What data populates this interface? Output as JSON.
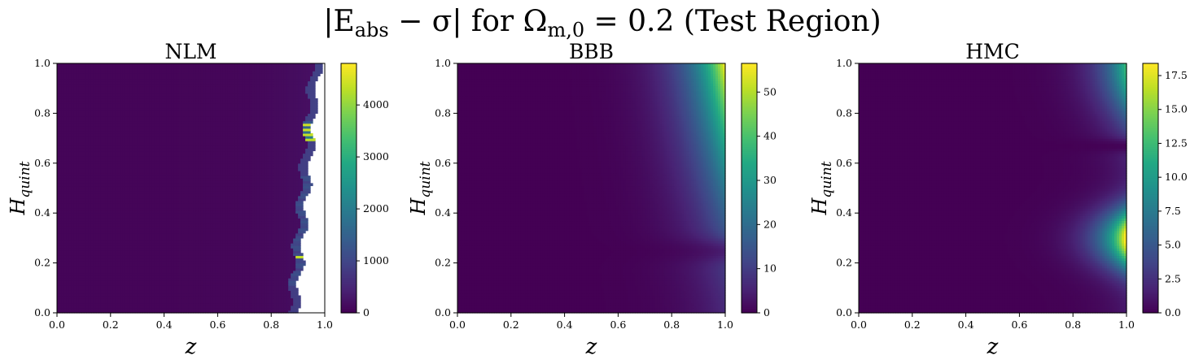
{
  "figure": {
    "title_main": "|E",
    "title_sub": "abs",
    "title_mid": " − σ| for Ω",
    "title_sub2": "m,0",
    "title_rest": " = 0.2 (Test Region)"
  },
  "chart_data": [
    {
      "type": "heatmap",
      "title": "NLM",
      "xlabel": "z",
      "ylabel_main": "H",
      "ylabel_sub": "quint",
      "xlim": [
        0,
        1
      ],
      "ylim": [
        0,
        1
      ],
      "xticks": [
        "0.0",
        "0.2",
        "0.4",
        "0.6",
        "0.8",
        "1.0"
      ],
      "yticks": [
        "0.0",
        "0.2",
        "0.4",
        "0.6",
        "0.8",
        "1.0"
      ],
      "colorbar": {
        "min": 0,
        "max": 4800,
        "ticks": [
          0,
          1000,
          2000,
          3000,
          4000
        ],
        "tick_labels": [
          "0",
          "1000",
          "2000",
          "3000",
          "4000"
        ]
      },
      "colormap": "viridis",
      "notes": "Near-zero everywhere; valid region ends at z≈0.90 (H=0) rising to z≈0.98 (H=1), white (missing) beyond; sporadic high values (up to ~4800) at the edge near H≈0.7–0.77 and H≈0.22."
    },
    {
      "type": "heatmap",
      "title": "BBB",
      "xlabel": "z",
      "ylabel_main": "H",
      "ylabel_sub": "quint",
      "xlim": [
        0,
        1
      ],
      "ylim": [
        0,
        1
      ],
      "xticks": [
        "0.0",
        "0.2",
        "0.4",
        "0.6",
        "0.8",
        "1.0"
      ],
      "yticks": [
        "0.0",
        "0.2",
        "0.4",
        "0.6",
        "0.8",
        "1.0"
      ],
      "colorbar": {
        "min": 0,
        "max": 56.5,
        "ticks": [
          0,
          10,
          20,
          30,
          40,
          50
        ],
        "tick_labels": [
          "0",
          "10",
          "20",
          "30",
          "40",
          "50"
        ]
      },
      "colormap": "viridis",
      "notes": "Error grows with z and H; maximum ~56 at z=1, H=1; dark dip near H≈0.25."
    },
    {
      "type": "heatmap",
      "title": "HMC",
      "xlabel": "z",
      "ylabel_main": "H",
      "ylabel_sub": "quint",
      "xlim": [
        0,
        1
      ],
      "ylim": [
        0,
        1
      ],
      "xticks": [
        "0.0",
        "0.2",
        "0.4",
        "0.6",
        "0.8",
        "1.0"
      ],
      "yticks": [
        "0.0",
        "0.2",
        "0.4",
        "0.6",
        "0.8",
        "1.0"
      ],
      "colorbar": {
        "min": 0,
        "max": 18.4,
        "ticks": [
          0,
          2.5,
          5,
          7.5,
          10,
          12.5,
          15,
          17.5
        ],
        "tick_labels": [
          "0.0",
          "2.5",
          "5.0",
          "7.5",
          "10.0",
          "12.5",
          "15.0",
          "17.5"
        ]
      },
      "colormap": "viridis",
      "notes": "Error concentrated at high z: peak ~18 near z=1, H≈0.3; secondary ~12 near H=1; dark band near H≈0.67."
    }
  ]
}
